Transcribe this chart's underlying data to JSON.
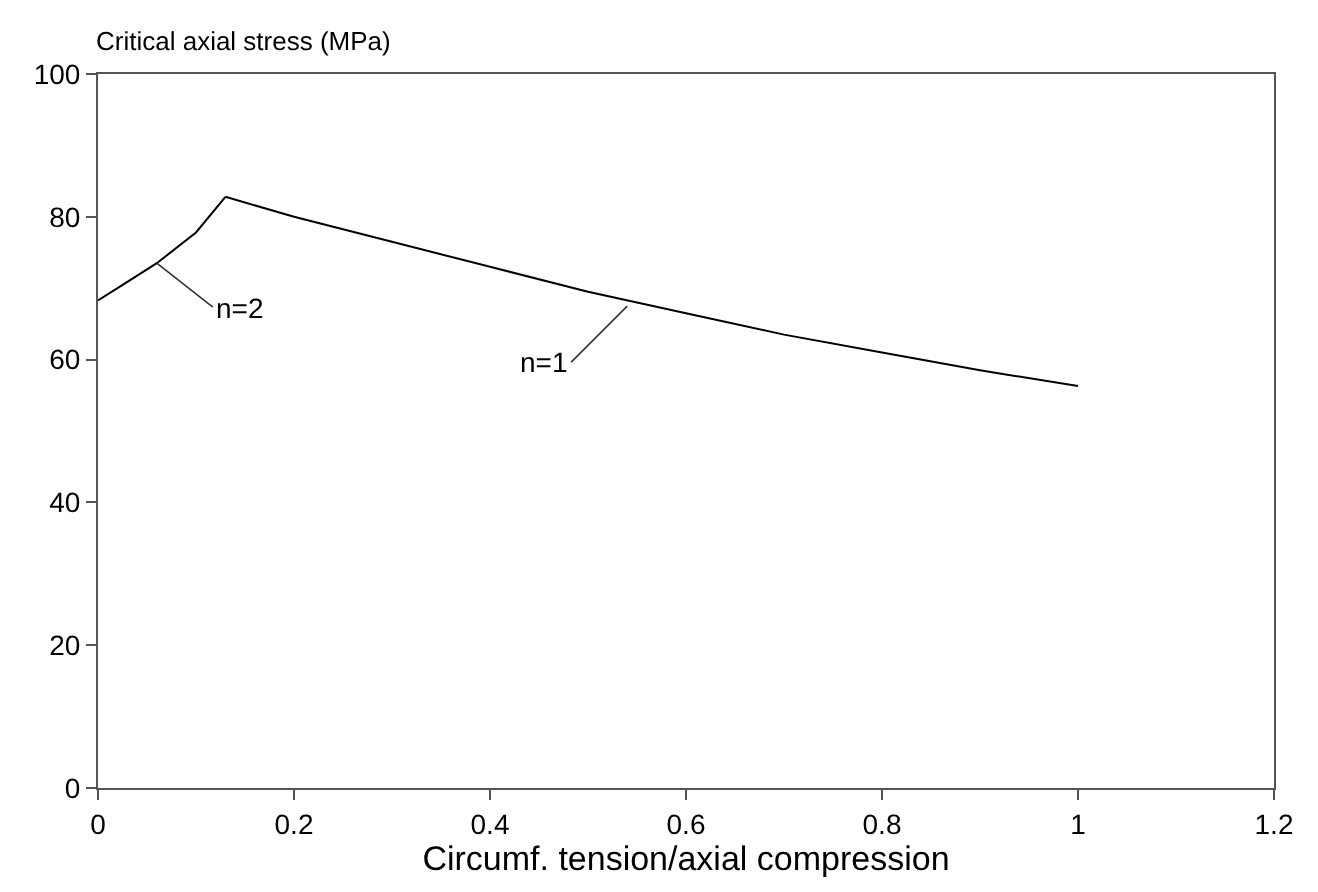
{
  "chart_data": {
    "type": "line",
    "xlabel": "Circumf. tension/axial compression",
    "ylabel": "Critical axial stress (MPa)",
    "series": [
      {
        "color": "#000000",
        "x": [
          0,
          0.03,
          0.06,
          0.1,
          0.13
        ],
        "values": [
          68.3,
          70.9,
          73.5,
          77.8,
          82.8
        ]
      },
      {
        "color": "#000000",
        "x": [
          0.13,
          0.2,
          0.3,
          0.4,
          0.5,
          0.6,
          0.7,
          0.8,
          0.9,
          1.0
        ],
        "values": [
          82.8,
          80,
          76.5,
          73,
          69.5,
          66.5,
          63.5,
          61,
          58.5,
          56.3
        ]
      }
    ],
    "annotations": [
      {
        "text": "n=2",
        "x": 0.06,
        "y": 73.5
      },
      {
        "text": "n=1",
        "x": 0.54,
        "y": 67.5
      }
    ],
    "xlim": [
      0,
      1.2
    ],
    "xticks": [
      0,
      0.2,
      0.4,
      0.6,
      0.8,
      1,
      1.2
    ],
    "ylim": [
      0,
      100
    ],
    "yticks": [
      0,
      20,
      40,
      60,
      80,
      100
    ],
    "marker": "none",
    "line_style": "solid"
  }
}
